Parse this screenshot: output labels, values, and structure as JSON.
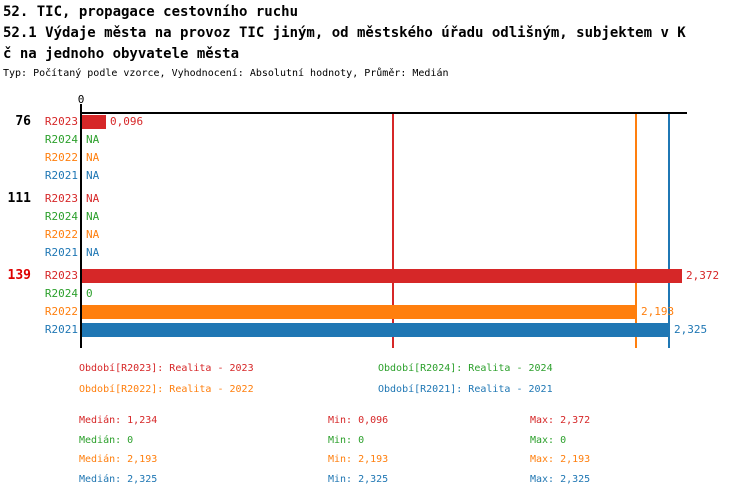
{
  "header": {
    "line1": "52. TIC, propagace cestovního ruchu",
    "line2": "52.1 Výdaje města na provoz TIC jiným, od městského úřadu odlišným, subjektem v K",
    "line3": "č na jednoho obyvatele města",
    "meta": "Typ: Počítaný podle vzorce, Vyhodnocení: Absolutní hodnoty, Průměr: Medián"
  },
  "colors": {
    "R2023": "#d62728",
    "R2024": "#2ca02c",
    "R2022": "#ff7f0e",
    "R2021": "#1f77b4",
    "highlight_group": "#dd0000",
    "normal_group": "#000000",
    "axis": "#000000"
  },
  "chart_data": {
    "type": "bar",
    "orientation": "horizontal",
    "title": "52.1 Výdaje města na provoz TIC jiným, od městského úřadu odlišným, subjektem v Kč na jednoho obyvatele města",
    "x_axis": {
      "zero_label": "0",
      "min": 0,
      "max_shown": 2.372
    },
    "na_label": "NA",
    "series_order": [
      "R2023",
      "R2024",
      "R2022",
      "R2021"
    ],
    "groups": [
      {
        "label": "76",
        "highlighted": false,
        "bars": [
          {
            "series": "R2023",
            "value": 0.096,
            "display": "0,096"
          },
          {
            "series": "R2024",
            "value": null,
            "display": "NA"
          },
          {
            "series": "R2022",
            "value": null,
            "display": "NA"
          },
          {
            "series": "R2021",
            "value": null,
            "display": "NA"
          }
        ]
      },
      {
        "label": "111",
        "highlighted": false,
        "bars": [
          {
            "series": "R2023",
            "value": null,
            "display": "NA"
          },
          {
            "series": "R2024",
            "value": null,
            "display": "NA"
          },
          {
            "series": "R2022",
            "value": null,
            "display": "NA"
          },
          {
            "series": "R2021",
            "value": null,
            "display": "NA"
          }
        ]
      },
      {
        "label": "139",
        "highlighted": true,
        "bars": [
          {
            "series": "R2023",
            "value": 2.372,
            "display": "2,372"
          },
          {
            "series": "R2024",
            "value": 0,
            "display": "0"
          },
          {
            "series": "R2022",
            "value": 2.193,
            "display": "2,193"
          },
          {
            "series": "R2021",
            "value": 2.325,
            "display": "2,325"
          }
        ]
      }
    ],
    "median_lines": [
      {
        "series": "R2023",
        "value": 1.234
      },
      {
        "series": "R2022",
        "value": 2.193
      },
      {
        "series": "R2021",
        "value": 2.325
      }
    ],
    "series_stats": [
      {
        "series": "R2023",
        "median": 1.234,
        "min": 0.096,
        "max": 2.372
      },
      {
        "series": "R2024",
        "median": 0,
        "min": 0,
        "max": 0
      },
      {
        "series": "R2022",
        "median": 2.193,
        "min": 2.193,
        "max": 2.193
      },
      {
        "series": "R2021",
        "median": 2.325,
        "min": 2.325,
        "max": 2.325
      }
    ]
  },
  "legend": {
    "items": [
      {
        "series": "R2023",
        "label": "Období[R2023]: Realita - 2023"
      },
      {
        "series": "R2024",
        "label": "Období[R2024]: Realita - 2024"
      },
      {
        "series": "R2022",
        "label": "Období[R2022]: Realita - 2022"
      },
      {
        "series": "R2021",
        "label": "Období[R2021]: Realita - 2021"
      }
    ]
  },
  "stats": {
    "rows": [
      {
        "series": "R2023",
        "median": "Medián: 1,234",
        "min": "Min: 0,096",
        "max": "Max: 2,372"
      },
      {
        "series": "R2024",
        "median": "Medián: 0",
        "min": "Min: 0",
        "max": "Max: 0"
      },
      {
        "series": "R2022",
        "median": "Medián: 2,193",
        "min": "Min: 2,193",
        "max": "Max: 2,193"
      },
      {
        "series": "R2021",
        "median": "Medián: 2,325",
        "min": "Min: 2,325",
        "max": "Max: 2,325"
      }
    ]
  }
}
